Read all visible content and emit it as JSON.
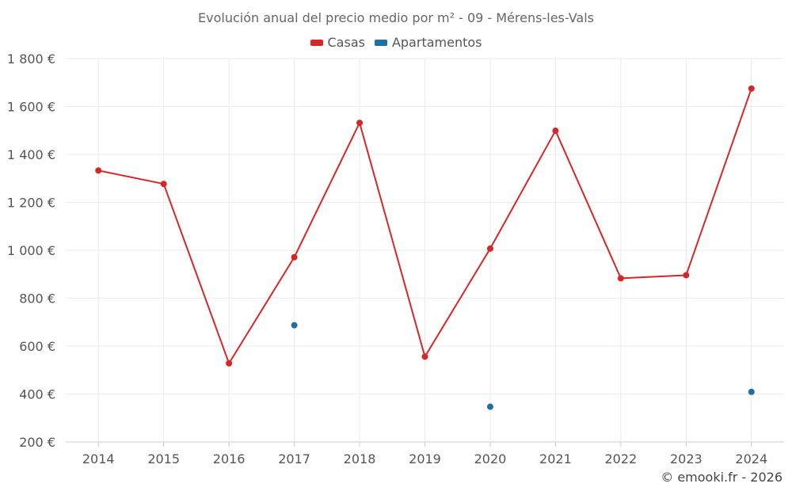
{
  "chart_data": {
    "type": "line",
    "title": "Evolución anual del precio medio por m² - 09 - Mérens-les-Vals",
    "categories": [
      "2014",
      "2015",
      "2016",
      "2017",
      "2018",
      "2019",
      "2020",
      "2021",
      "2022",
      "2023",
      "2024"
    ],
    "series": [
      {
        "name": "Casas",
        "color": "#d62728",
        "values": [
          1333,
          1277,
          528,
          971,
          1532,
          556,
          1007,
          1499,
          883,
          896,
          1675
        ]
      },
      {
        "name": "Apartamentos",
        "color": "#1f6fa3",
        "values": [
          null,
          null,
          null,
          687,
          null,
          null,
          347,
          null,
          null,
          null,
          409
        ]
      }
    ],
    "y_ticks": [
      "200 €",
      "400 €",
      "600 €",
      "800 €",
      "1 000 €",
      "1 200 €",
      "1 400 €",
      "1 600 €",
      "1 800 €"
    ],
    "ylim": [
      200,
      1800
    ],
    "grid": true,
    "legend_position": "top-center"
  },
  "credit": "© emooki.fr - 2026"
}
